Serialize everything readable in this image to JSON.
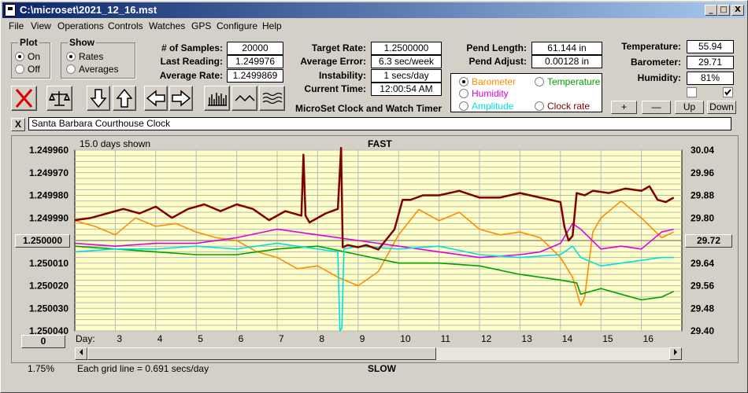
{
  "window": {
    "title": "C:\\microset\\2021_12_16.mst",
    "minimize": "_",
    "restore": "□",
    "close": "X"
  },
  "menu": [
    "File",
    "View",
    "Operations",
    "Controls",
    "Watches",
    "GPS",
    "Configure",
    "Help"
  ],
  "plot": {
    "caption": "Plot",
    "on": "On",
    "off": "Off",
    "selected": "On"
  },
  "show": {
    "caption": "Show",
    "rates": "Rates",
    "averages": "Averages",
    "selected": "Rates"
  },
  "stats": [
    {
      "label": "# of Samples:",
      "value": "20000"
    },
    {
      "label": "Last Reading:",
      "value": "1.249976"
    },
    {
      "label": "Average Rate:",
      "value": "1.2499869"
    }
  ],
  "targets": [
    {
      "label": "Target Rate:",
      "value": "1.2500000"
    },
    {
      "label": "Average Error:",
      "value": "6.3 sec/week"
    },
    {
      "label": "Instability:",
      "value": "1 secs/day"
    },
    {
      "label": "Current Time:",
      "value": "12:00:54 AM"
    }
  ],
  "app_name": "MicroSet Clock and Watch Timer",
  "pend": [
    {
      "label": "Pend Length:",
      "value": "61.144 in"
    },
    {
      "label": "Pend Adjust:",
      "value": "0.00128 in"
    }
  ],
  "env": [
    {
      "label": "Temperature:",
      "value": "55.94"
    },
    {
      "label": "Barometer:",
      "value": "29.71"
    },
    {
      "label": "Humidity:",
      "value": "81%"
    }
  ],
  "env_checks": [
    false,
    true
  ],
  "legend": [
    {
      "label": "Barometer",
      "color": "#ff8c00",
      "selected": true
    },
    {
      "label": "Temperature",
      "color": "#00a000",
      "selected": false
    },
    {
      "label": "Humidity",
      "color": "#e000e0",
      "selected": false
    },
    {
      "label": "Clock rate",
      "color": "#800000",
      "selected": false
    },
    {
      "label": "Amplitude",
      "color": "#00e0e0",
      "selected": false
    }
  ],
  "scale_buttons": {
    "plus": "+",
    "minus": "—",
    "up": "Up",
    "down": "Down"
  },
  "tool_icons": [
    "stop-icon",
    "balance-scale-icon",
    "arrow-down-icon",
    "arrow-up-icon",
    "arrow-left-icon",
    "arrow-right-icon",
    "bar-histogram-icon",
    "wave-icon",
    "multi-wave-icon"
  ],
  "clock_name": "Santa Barbara Courthouse Clock",
  "clear_button": "X",
  "chart_labels": {
    "days_shown": "15.0 days shown",
    "fast": "FAST",
    "slow": "SLOW",
    "grid_note": "Each grid line = 0.691 secs/day",
    "percent": "1.75%",
    "left_ref": "1.250000",
    "right_ref": "29.72",
    "x_button": "0",
    "day_label": "Day:"
  },
  "colors": {
    "plot_bg": "#ffffc8",
    "clock_rate": "#800000",
    "barometer": "#ff8c00",
    "humidity": "#e000e0",
    "temperature": "#00a000",
    "amplitude": "#00e0e0"
  },
  "chart_data": {
    "type": "line",
    "title": "",
    "xlabel": "Day:",
    "y_ticks_left": [
      "1.249960",
      "1.249970",
      "1.249980",
      "1.249990",
      "1.250000",
      "1.250010",
      "1.250020",
      "1.250030",
      "1.250040"
    ],
    "y_ticks_right": [
      "30.04",
      "29.96",
      "29.88",
      "29.80",
      "29.72",
      "29.64",
      "29.56",
      "29.48",
      "29.40"
    ],
    "x_ticks": [
      "3",
      "4",
      "5",
      "6",
      "7",
      "8",
      "9",
      "10",
      "11",
      "12",
      "13",
      "14",
      "15",
      "16"
    ],
    "xlim": [
      2,
      17
    ],
    "ylim_left": [
      1.25004,
      1.24996
    ],
    "ylim_right": [
      29.4,
      30.04
    ],
    "grid": true,
    "series": [
      {
        "color": "#800000",
        "x": [
          2.0,
          2.4,
          2.8,
          3.2,
          3.6,
          4.0,
          4.4,
          4.8,
          5.2,
          5.6,
          6.0,
          6.4,
          6.8,
          7.2,
          7.6,
          7.65,
          7.7,
          7.8,
          8.2,
          8.5,
          8.58,
          8.62,
          8.75,
          9.0,
          9.2,
          9.5,
          9.9,
          10.1,
          10.3,
          10.6,
          11.0,
          11.5,
          12.0,
          12.5,
          13.0,
          13.5,
          14.0,
          14.1,
          14.2,
          14.3,
          14.4,
          14.6,
          14.8,
          15.2,
          15.6,
          16.0,
          16.2,
          16.4,
          16.6,
          16.8
        ],
        "y": [
          1.249991,
          1.24999,
          1.249988,
          1.249986,
          1.249988,
          1.249985,
          1.24999,
          1.249986,
          1.249984,
          1.249987,
          1.249984,
          1.249986,
          1.249991,
          1.249987,
          1.249989,
          1.249962,
          1.249989,
          1.249992,
          1.249988,
          1.249986,
          1.249959,
          1.250003,
          1.250002,
          1.250003,
          1.250002,
          1.250004,
          1.249995,
          1.249982,
          1.249982,
          1.24998,
          1.24998,
          1.249978,
          1.249981,
          1.249981,
          1.249979,
          1.249981,
          1.249983,
          1.249994,
          1.25,
          1.249998,
          1.249979,
          1.24998,
          1.249978,
          1.249979,
          1.249977,
          1.249978,
          1.249976,
          1.249982,
          1.249983,
          1.249981
        ]
      },
      {
        "color": "#ff8c00",
        "x": [
          2.0,
          2.5,
          3.0,
          3.5,
          4.0,
          4.5,
          5.0,
          5.5,
          6.0,
          6.5,
          7.0,
          7.5,
          8.0,
          8.5,
          9.0,
          9.5,
          10.0,
          10.5,
          11.0,
          11.5,
          12.0,
          12.5,
          13.0,
          13.5,
          14.0,
          14.3,
          14.5,
          14.6,
          14.8,
          15.0,
          15.5,
          16.0,
          16.5,
          16.8
        ],
        "y": [
          29.79,
          29.77,
          29.74,
          29.8,
          29.77,
          29.78,
          29.75,
          29.73,
          29.72,
          29.68,
          29.66,
          29.62,
          29.63,
          29.59,
          29.56,
          29.61,
          29.74,
          29.83,
          29.79,
          29.82,
          29.76,
          29.74,
          29.75,
          29.73,
          29.66,
          29.59,
          29.49,
          29.52,
          29.75,
          29.8,
          29.86,
          29.8,
          29.73,
          29.75
        ]
      },
      {
        "color": "#e000e0",
        "x": [
          2.0,
          3.0,
          4.0,
          5.0,
          6.0,
          7.0,
          8.0,
          9.0,
          10.0,
          11.0,
          12.0,
          13.0,
          13.5,
          14.0,
          14.3,
          14.5,
          15.0,
          15.5,
          16.0,
          16.5,
          16.8
        ],
        "y": [
          29.71,
          29.7,
          29.71,
          29.71,
          29.73,
          29.76,
          29.74,
          29.72,
          29.7,
          29.68,
          29.66,
          29.67,
          29.68,
          29.71,
          29.78,
          29.76,
          29.69,
          29.7,
          29.69,
          29.75,
          29.76
        ]
      },
      {
        "color": "#00a000",
        "x": [
          2.0,
          3.0,
          4.0,
          5.0,
          6.0,
          7.0,
          8.0,
          9.0,
          10.0,
          11.0,
          12.0,
          13.0,
          14.0,
          14.4,
          14.5,
          15.0,
          15.5,
          16.0,
          16.5,
          16.8
        ],
        "y": [
          29.7,
          29.69,
          29.68,
          29.67,
          29.67,
          29.69,
          29.7,
          29.67,
          29.64,
          29.64,
          29.63,
          29.6,
          29.58,
          29.57,
          29.53,
          29.55,
          29.53,
          29.51,
          29.52,
          29.54
        ]
      },
      {
        "color": "#00e0e0",
        "x": [
          2.0,
          3.0,
          4.0,
          5.0,
          6.0,
          7.0,
          8.0,
          8.5,
          8.55,
          8.6,
          8.65,
          9.0,
          10.0,
          11.0,
          12.0,
          13.0,
          14.0,
          14.3,
          14.5,
          15.0,
          16.0,
          16.5,
          16.8
        ],
        "y": [
          29.68,
          29.69,
          29.69,
          29.7,
          29.69,
          29.71,
          29.69,
          29.68,
          29.4,
          29.41,
          29.69,
          29.7,
          29.69,
          29.7,
          29.67,
          29.66,
          29.67,
          29.7,
          29.66,
          29.63,
          29.65,
          29.66,
          29.66
        ]
      }
    ]
  }
}
